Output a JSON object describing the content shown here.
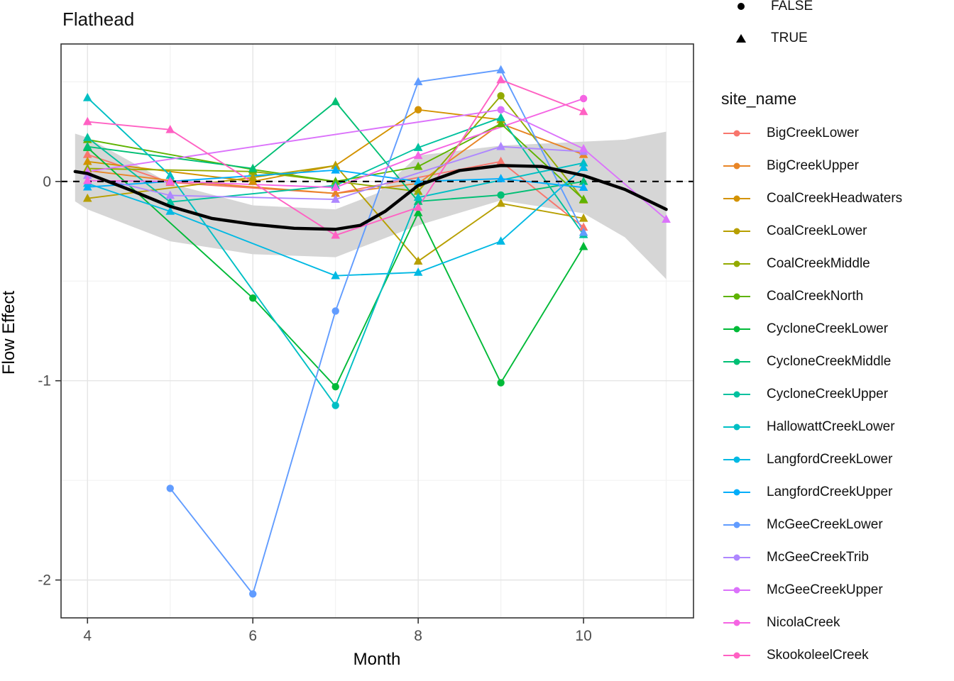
{
  "title": "Flathead",
  "axes": {
    "x_label": "Month",
    "y_label": "Flow Effect",
    "x_ticks": [
      4,
      6,
      8,
      10
    ],
    "x_minor": [
      5,
      7,
      9,
      11
    ],
    "y_ticks": [
      0,
      -1,
      -2
    ],
    "y_minor": [
      0.5,
      -0.5,
      -1.5
    ],
    "xlim": [
      3.68,
      11.33
    ],
    "ylim": [
      -2.19,
      0.69
    ],
    "tick_color": "#4d4d4d",
    "grid_major_color": "#e5e5e5",
    "grid_minor_color": "#f2f2f2",
    "panel_border_color": "#333333"
  },
  "shape_legend": {
    "items": [
      {
        "label": "FALSE",
        "shape": "circle"
      },
      {
        "label": "TRUE",
        "shape": "triangle"
      }
    ]
  },
  "site_legend": {
    "title": "site_name"
  },
  "chart_data": {
    "type": "line",
    "title": "Flathead",
    "xlabel": "Month",
    "ylabel": "Flow Effect",
    "x_range": [
      4,
      11
    ],
    "ylim": [
      -2.19,
      0.69
    ],
    "grid": true,
    "legend_position": "right",
    "zero_reference_line": {
      "y": 0,
      "style": "dashed",
      "color": "#000000"
    },
    "ribbon": {
      "color": "#d6d6d6",
      "x": [
        3.85,
        4,
        5,
        6,
        7,
        7.5,
        8,
        9,
        10,
        10.5,
        11
      ],
      "upper": [
        0.24,
        0.22,
        -0.01,
        -0.12,
        -0.14,
        -0.06,
        0.13,
        0.18,
        0.2,
        0.21,
        0.25
      ],
      "lower": [
        -0.1,
        -0.14,
        -0.3,
        -0.365,
        -0.38,
        -0.3,
        -0.22,
        -0.095,
        -0.16,
        -0.28,
        -0.49
      ]
    },
    "smooth": {
      "color": "#000000",
      "x": [
        3.85,
        4,
        4.5,
        5,
        5.5,
        6,
        6.5,
        7,
        7.3,
        7.6,
        8,
        8.5,
        9,
        9.5,
        10,
        10.5,
        11
      ],
      "y": [
        0.05,
        0.04,
        -0.04,
        -0.125,
        -0.185,
        -0.215,
        -0.235,
        -0.24,
        -0.22,
        -0.15,
        -0.02,
        0.055,
        0.08,
        0.075,
        0.03,
        -0.04,
        -0.14
      ]
    },
    "shape_meaning": {
      "circle": "FALSE",
      "triangle": "TRUE"
    },
    "series": [
      {
        "name": "BigCreekLower",
        "color": "#F8766D",
        "points": [
          [
            4,
            0.135,
            "t"
          ],
          [
            5,
            -0.005,
            "t"
          ],
          [
            7,
            -0.06,
            "t"
          ],
          [
            9,
            0.1,
            "t"
          ],
          [
            10,
            -0.23,
            "t"
          ]
        ]
      },
      {
        "name": "BigCreekUpper",
        "color": "#E88526",
        "points": [
          [
            4,
            0.055,
            "t"
          ],
          [
            5,
            0.005,
            "t"
          ],
          [
            7,
            -0.06,
            "t"
          ],
          [
            8,
            -0.01,
            "t"
          ],
          [
            9,
            0.29,
            "t"
          ],
          [
            10,
            0.135,
            "t"
          ]
        ]
      },
      {
        "name": "CoalCreekHeadwaters",
        "color": "#D39200",
        "points": [
          [
            4,
            0.1,
            "t"
          ],
          [
            6,
            0.0,
            "t"
          ],
          [
            7,
            0.08,
            "t"
          ],
          [
            8,
            0.36,
            "c"
          ],
          [
            9,
            0.31,
            "t"
          ]
        ]
      },
      {
        "name": "CoalCreekLower",
        "color": "#B79F00",
        "points": [
          [
            4,
            -0.085,
            "t"
          ],
          [
            6,
            0.02,
            "t"
          ],
          [
            7,
            0.08,
            "t"
          ],
          [
            8,
            -0.4,
            "t"
          ],
          [
            9,
            -0.11,
            "t"
          ],
          [
            10,
            -0.185,
            "t"
          ]
        ]
      },
      {
        "name": "CoalCreekMiddle",
        "color": "#93AA00",
        "points": [
          [
            4,
            0.065,
            "t"
          ],
          [
            6,
            0.05,
            "t"
          ],
          [
            8,
            -0.05,
            "t"
          ],
          [
            9,
            0.43,
            "c"
          ],
          [
            10,
            -0.093,
            "t"
          ]
        ]
      },
      {
        "name": "CoalCreekNorth",
        "color": "#5EB300",
        "points": [
          [
            4,
            0.21,
            "t"
          ],
          [
            6,
            0.06,
            "t"
          ],
          [
            7,
            0.0,
            "t"
          ],
          [
            8,
            0.075,
            "t"
          ],
          [
            9,
            0.29,
            "t"
          ],
          [
            10,
            -0.09,
            "t"
          ]
        ]
      },
      {
        "name": "CycloneCreekLower",
        "color": "#00BA38",
        "points": [
          [
            4,
            0.17,
            "t"
          ],
          [
            6,
            -0.585,
            "c"
          ],
          [
            7,
            -1.03,
            "c"
          ],
          [
            8,
            -0.157,
            "t"
          ],
          [
            9,
            -1.01,
            "c"
          ],
          [
            10,
            -0.327,
            "t"
          ]
        ]
      },
      {
        "name": "CycloneCreekMiddle",
        "color": "#00BF74",
        "points": [
          [
            4,
            0.175,
            "t"
          ],
          [
            6,
            0.065,
            "t"
          ],
          [
            7,
            0.4,
            "t"
          ],
          [
            8,
            -0.1,
            "t"
          ],
          [
            9,
            -0.068,
            "c"
          ],
          [
            10,
            0.0,
            "t"
          ]
        ]
      },
      {
        "name": "CycloneCreekUpper",
        "color": "#00C19F",
        "points": [
          [
            4,
            0.22,
            "t"
          ],
          [
            5,
            -0.103,
            "t"
          ],
          [
            7,
            -0.02,
            "t"
          ],
          [
            8,
            0.17,
            "t"
          ],
          [
            9,
            0.32,
            "t"
          ],
          [
            10,
            -0.267,
            "t"
          ]
        ]
      },
      {
        "name": "HallowattCreekLower",
        "color": "#00BFC4",
        "points": [
          [
            4,
            0.42,
            "t"
          ],
          [
            5,
            0.03,
            "t"
          ],
          [
            7,
            -1.124,
            "c"
          ],
          [
            8,
            -0.08,
            "t"
          ],
          [
            10,
            0.093,
            "t"
          ]
        ]
      },
      {
        "name": "LangfordCreekLower",
        "color": "#00B9E3",
        "points": [
          [
            4,
            -0.01,
            "t"
          ],
          [
            5,
            -0.15,
            "t"
          ],
          [
            7,
            -0.473,
            "t"
          ],
          [
            8,
            -0.456,
            "t"
          ],
          [
            9,
            -0.3,
            "t"
          ],
          [
            10,
            0.07,
            "t"
          ]
        ]
      },
      {
        "name": "LangfordCreekUpper",
        "color": "#00ADFA",
        "points": [
          [
            4,
            -0.028,
            "t"
          ],
          [
            7,
            0.057,
            "t"
          ],
          [
            8,
            0.0,
            "t"
          ],
          [
            9,
            0.014,
            "t"
          ],
          [
            10,
            -0.03,
            "t"
          ]
        ]
      },
      {
        "name": "McGeeCreekLower",
        "color": "#619CFF",
        "points": [
          [
            5,
            -1.54,
            "c"
          ],
          [
            6,
            -2.07,
            "c"
          ],
          [
            7,
            -0.65,
            "c"
          ],
          [
            8,
            0.5,
            "t"
          ],
          [
            9,
            0.56,
            "t"
          ],
          [
            10,
            -0.256,
            "t"
          ]
        ]
      },
      {
        "name": "McGeeCreekTrib",
        "color": "#AE87FF",
        "points": [
          [
            4,
            0.03,
            "t"
          ],
          [
            5,
            -0.07,
            "t"
          ],
          [
            7,
            -0.09,
            "t"
          ],
          [
            9,
            0.175,
            "t"
          ],
          [
            10,
            0.15,
            "t"
          ]
        ]
      },
      {
        "name": "McGeeCreekUpper",
        "color": "#DB72FB",
        "points": [
          [
            4,
            0.05,
            "t"
          ],
          [
            9,
            0.36,
            "c"
          ],
          [
            10,
            0.164,
            "t"
          ],
          [
            11,
            -0.19,
            "t"
          ]
        ]
      },
      {
        "name": "NicolaCreek",
        "color": "#F564E3",
        "points": [
          [
            4,
            0.004,
            "t"
          ],
          [
            5,
            0.0,
            "t"
          ],
          [
            7,
            -0.03,
            "t"
          ],
          [
            8,
            0.13,
            "t"
          ],
          [
            10,
            0.416,
            "c"
          ]
        ]
      },
      {
        "name": "SkookoleelCreek",
        "color": "#FF61C3",
        "points": [
          [
            4,
            0.3,
            "t"
          ],
          [
            5,
            0.26,
            "t"
          ],
          [
            7,
            -0.27,
            "t"
          ],
          [
            8,
            -0.13,
            "t"
          ],
          [
            9,
            0.51,
            "t"
          ],
          [
            10,
            0.35,
            "t"
          ]
        ]
      }
    ]
  }
}
